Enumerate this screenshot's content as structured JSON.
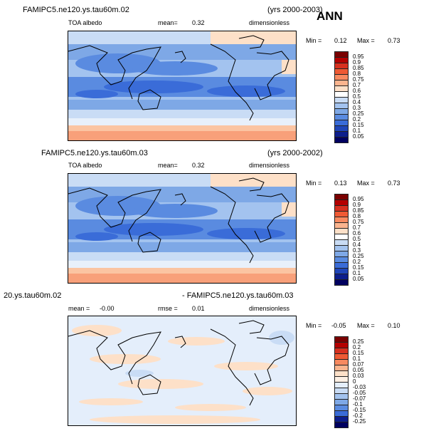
{
  "season": "ANN",
  "panels": [
    {
      "case_name": "FAMIPC5.ne120.ys.tau60m.02",
      "years": "(yrs 2000-2003)",
      "variable": "TOA albedo",
      "mean_label": "mean=",
      "mean_value": "0.32",
      "units": "dimensionless",
      "min_label": "Min =",
      "min_value": "0.12",
      "max_label": "Max =",
      "max_value": "0.73",
      "colorbar_labels": [
        "0.95",
        "0.9",
        "0.85",
        "0.8",
        "0.75",
        "0.7",
        "0.6",
        "0.5",
        "0.4",
        "0.3",
        "0.25",
        "0.2",
        "0.15",
        "0.1",
        "0.05"
      ]
    },
    {
      "case_name": "FAMIPC5.ne120.ys.tau60m.03",
      "years": "(yrs 2000-2002)",
      "variable": "TOA albedo",
      "mean_label": "mean=",
      "mean_value": "0.32",
      "units": "dimensionless",
      "min_label": "Min =",
      "min_value": "0.13",
      "max_label": "Max =",
      "max_value": "0.73",
      "colorbar_labels": [
        "0.95",
        "0.9",
        "0.85",
        "0.8",
        "0.75",
        "0.7",
        "0.6",
        "0.5",
        "0.4",
        "0.3",
        "0.25",
        "0.2",
        "0.15",
        "0.1",
        "0.05"
      ]
    },
    {
      "case_left": "20.ys.tau60m.02",
      "case_right": "- FAMIPC5.ne120.ys.tau60m.03",
      "mean_label": "mean =",
      "mean_value": "-0.00",
      "rmse_label": "rmse =",
      "rmse_value": "0.01",
      "units": "dimensionless",
      "min_label": "Min =",
      "min_value": "-0.05",
      "max_label": "Max =",
      "max_value": "0.10",
      "colorbar_labels": [
        "0.25",
        "0.2",
        "0.15",
        "0.1",
        "0.07",
        "0.05",
        "0.03",
        "0",
        "-0.03",
        "-0.05",
        "-0.07",
        "-0.1",
        "-0.15",
        "-0.2",
        "-0.25"
      ]
    }
  ],
  "colors": {
    "albedo_scale": [
      "#7a0000",
      "#b40000",
      "#d7301f",
      "#ef5a34",
      "#f88a60",
      "#fbb48e",
      "#fde0c8",
      "#ffffff",
      "#c9dcf5",
      "#a3c3ef",
      "#7ea8e6",
      "#5a8be0",
      "#3a6cd8",
      "#1f45b8",
      "#0d1e8c",
      "#000060"
    ],
    "diff_scale": [
      "#7a0000",
      "#b40000",
      "#d7301f",
      "#ef5a34",
      "#f88a60",
      "#fbb48e",
      "#fde0c8",
      "#fdf0e4",
      "#e4eefb",
      "#c9dcf5",
      "#a3c3ef",
      "#7ea8e6",
      "#5a8be0",
      "#3a6cd8",
      "#0d1e8c",
      "#000060"
    ]
  }
}
